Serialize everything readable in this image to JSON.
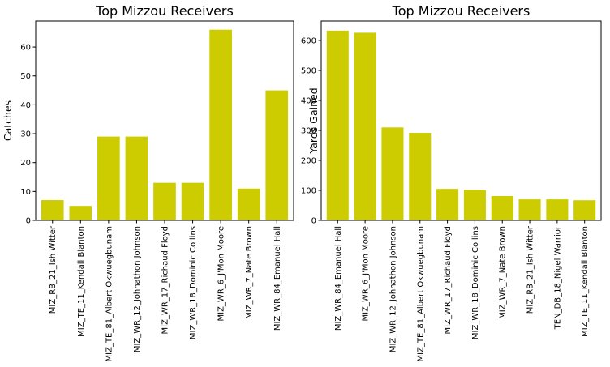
{
  "chart_data": [
    {
      "type": "bar",
      "title": "Top Mizzou Receivers",
      "xlabel": "",
      "ylabel": "Catches",
      "ylim": [
        0,
        69
      ],
      "yticks": [
        0,
        10,
        20,
        30,
        40,
        50,
        60
      ],
      "color": "#cccc00",
      "categories": [
        "MIZ_RB_21_Ish Witter",
        "MIZ_TE_11_Kendall Blanton",
        "MIZ_TE_81_Albert Okwuegbunam",
        "MIZ_WR_12_Johnathon Johnson",
        "MIZ_WR_17_Richaud Floyd",
        "MIZ_WR_18_Dominic Collins",
        "MIZ_WR_6_J'Mon Moore",
        "MIZ_WR_7_Nate Brown",
        "MIZ_WR_84_Emanuel Hall"
      ],
      "values": [
        7,
        5,
        29,
        29,
        13,
        13,
        66,
        11,
        45
      ]
    },
    {
      "type": "bar",
      "title": "Top Mizzou Receivers",
      "xlabel": "",
      "ylabel": "Yards Gained",
      "ylim": [
        0,
        665
      ],
      "yticks": [
        0,
        100,
        200,
        300,
        400,
        500,
        600
      ],
      "color": "#cccc00",
      "categories": [
        "MIZ_WR_84_Emanuel Hall",
        "MIZ_WR_6_J'Mon Moore",
        "MIZ_WR_12_Johnathon Johnson",
        "MIZ_TE_81_Albert Okwuegbunam",
        "MIZ_WR_17_Richaud Floyd",
        "MIZ_WR_18_Dominic Collins",
        "MIZ_WR_7_Nate Brown",
        "MIZ_RB_21_Ish Witter",
        "TEN_DB_18_Nigel Warrior",
        "MIZ_TE_11_Kendall Blanton"
      ],
      "values": [
        633,
        626,
        310,
        292,
        105,
        102,
        81,
        70,
        70,
        67
      ]
    }
  ]
}
